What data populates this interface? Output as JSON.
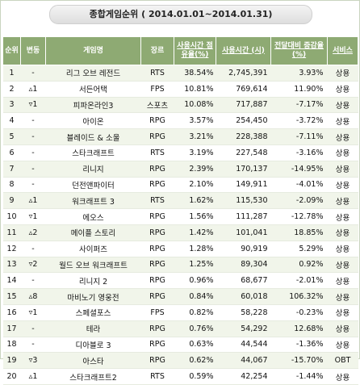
{
  "title": "종합게임순위 ( 2014.01.01~2014.01.31)",
  "headers": {
    "rank": "순위",
    "change": "변동",
    "game": "게임명",
    "genre": "장르",
    "share": "사용시간 점유율(%)",
    "time": "사용시간 (시)",
    "diff": "전달대비 증감율(%)",
    "service": "서비스"
  },
  "rows": [
    {
      "rank": "1",
      "change": "-",
      "name": "리그 오브 레전드",
      "genre": "RTS",
      "share": "38.54%",
      "time": "2,745,391",
      "diff": "3.93%",
      "service": "상용"
    },
    {
      "rank": "2",
      "change": "▵1",
      "name": "서든어택",
      "genre": "FPS",
      "share": "10.81%",
      "time": "769,614",
      "diff": "11.90%",
      "service": "상용"
    },
    {
      "rank": "3",
      "change": "▿1",
      "name": "피파온라인3",
      "genre": "스포츠",
      "share": "10.08%",
      "time": "717,887",
      "diff": "-7.17%",
      "service": "상용"
    },
    {
      "rank": "4",
      "change": "-",
      "name": "아이온",
      "genre": "RPG",
      "share": "3.57%",
      "time": "254,450",
      "diff": "-3.72%",
      "service": "상용"
    },
    {
      "rank": "5",
      "change": "-",
      "name": "블레이드 & 소울",
      "genre": "RPG",
      "share": "3.21%",
      "time": "228,388",
      "diff": "-7.11%",
      "service": "상용"
    },
    {
      "rank": "6",
      "change": "-",
      "name": "스타크래프트",
      "genre": "RTS",
      "share": "3.19%",
      "time": "227,548",
      "diff": "-3.16%",
      "service": "상용"
    },
    {
      "rank": "7",
      "change": "-",
      "name": "리니지",
      "genre": "RPG",
      "share": "2.39%",
      "time": "170,137",
      "diff": "-14.95%",
      "service": "상용"
    },
    {
      "rank": "8",
      "change": "-",
      "name": "던전앤파이터",
      "genre": "RPG",
      "share": "2.10%",
      "time": "149,911",
      "diff": "-4.01%",
      "service": "상용"
    },
    {
      "rank": "9",
      "change": "▵1",
      "name": "워크래프트 3",
      "genre": "RTS",
      "share": "1.62%",
      "time": "115,530",
      "diff": "-2.09%",
      "service": "상용"
    },
    {
      "rank": "10",
      "change": "▿1",
      "name": "에오스",
      "genre": "RPG",
      "share": "1.56%",
      "time": "111,287",
      "diff": "-12.78%",
      "service": "상용"
    },
    {
      "rank": "11",
      "change": "▵2",
      "name": "메이플 스토리",
      "genre": "RPG",
      "share": "1.42%",
      "time": "101,041",
      "diff": "18.85%",
      "service": "상용"
    },
    {
      "rank": "12",
      "change": "-",
      "name": "사이퍼즈",
      "genre": "RPG",
      "share": "1.28%",
      "time": "90,919",
      "diff": "5.29%",
      "service": "상용"
    },
    {
      "rank": "13",
      "change": "▿2",
      "name": "월드 오브 워크래프트",
      "genre": "RPG",
      "share": "1.25%",
      "time": "89,304",
      "diff": "0.92%",
      "service": "상용"
    },
    {
      "rank": "14",
      "change": "-",
      "name": "리니지 2",
      "genre": "RPG",
      "share": "0.96%",
      "time": "68,677",
      "diff": "-2.01%",
      "service": "상용"
    },
    {
      "rank": "15",
      "change": "▵8",
      "name": "마비노기 영웅전",
      "genre": "RPG",
      "share": "0.84%",
      "time": "60,018",
      "diff": "106.32%",
      "service": "상용"
    },
    {
      "rank": "16",
      "change": "▿1",
      "name": "스페셜포스",
      "genre": "FPS",
      "share": "0.82%",
      "time": "58,228",
      "diff": "-0.23%",
      "service": "상용"
    },
    {
      "rank": "17",
      "change": "-",
      "name": "테라",
      "genre": "RPG",
      "share": "0.76%",
      "time": "54,292",
      "diff": "12.68%",
      "service": "상용"
    },
    {
      "rank": "18",
      "change": "-",
      "name": "디아블로 3",
      "genre": "RPG",
      "share": "0.63%",
      "time": "44,544",
      "diff": "-1.36%",
      "service": "상용"
    },
    {
      "rank": "19",
      "change": "▿3",
      "name": "아스타",
      "genre": "RPG",
      "share": "0.62%",
      "time": "44,067",
      "diff": "-15.70%",
      "service": "OBT"
    },
    {
      "rank": "20",
      "change": "▵1",
      "name": "스타크래프트2",
      "genre": "RTS",
      "share": "0.59%",
      "time": "42,254",
      "diff": "-1.44%",
      "service": "상용"
    }
  ]
}
